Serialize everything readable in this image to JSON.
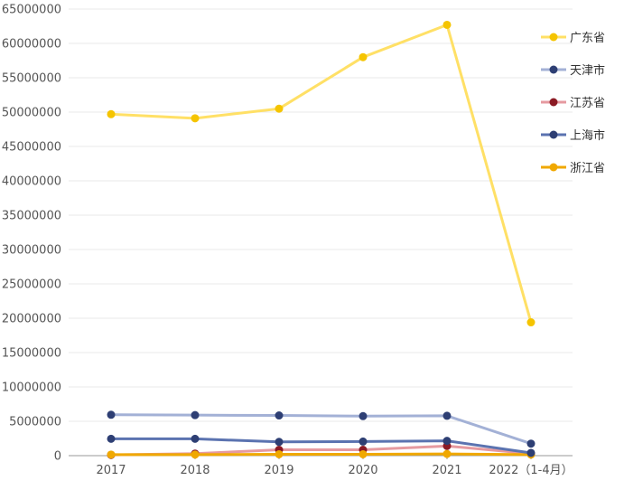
{
  "chart_data": {
    "type": "line",
    "categories": [
      "2017",
      "2018",
      "2019",
      "2020",
      "2021",
      "2022（1-4月）"
    ],
    "ylim": [
      0,
      65000000
    ],
    "y_ticks": [
      0,
      5000000,
      10000000,
      15000000,
      20000000,
      25000000,
      30000000,
      35000000,
      40000000,
      45000000,
      50000000,
      55000000,
      60000000,
      65000000
    ],
    "grid": true,
    "legend_position": "right",
    "series": [
      {
        "name": "广东省",
        "line_color": "#ffe066",
        "marker_color": "#f5c400",
        "values": [
          49700000,
          49100000,
          50500000,
          58000000,
          62700000,
          19400000
        ]
      },
      {
        "name": "天津市",
        "line_color": "#a3b1d6",
        "marker_color": "#2e3f74",
        "values": [
          5950000,
          5900000,
          5850000,
          5750000,
          5800000,
          1750000
        ]
      },
      {
        "name": "江苏省",
        "line_color": "#e69aa0",
        "marker_color": "#8b1a24",
        "values": [
          100000,
          300000,
          850000,
          850000,
          1400000,
          300000
        ]
      },
      {
        "name": "上海市",
        "line_color": "#5b73b0",
        "marker_color": "#2e3f74",
        "values": [
          2450000,
          2450000,
          2000000,
          2050000,
          2150000,
          400000
        ]
      },
      {
        "name": "浙江省",
        "line_color": "#f0a800",
        "marker_color": "#f0a800",
        "values": [
          150000,
          150000,
          200000,
          200000,
          250000,
          150000
        ]
      }
    ]
  }
}
